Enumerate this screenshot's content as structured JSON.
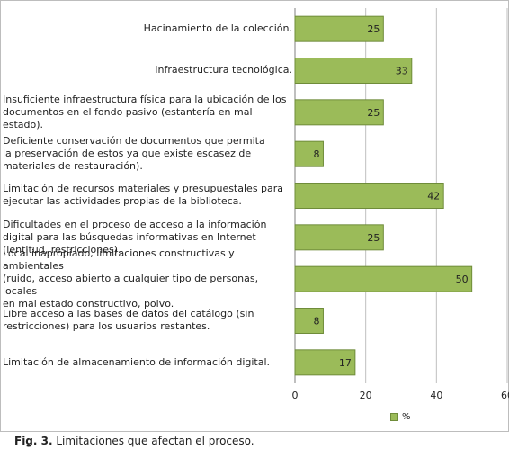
{
  "chart_data": {
    "type": "bar",
    "orientation": "horizontal",
    "categories": [
      "Hacinamiento de la colección.",
      "Infraestructura tecnológica.",
      "Insuficiente infraestructura física para la ubicación de los documentos en el fondo pasivo (estantería en mal estado).",
      "Deficiente conservación de documentos que permita la preservación de estos ya que existe escasez de materiales de restauración).",
      "Limitación de recursos materiales y presupuestales para ejecutar las actividades propias de la biblioteca.",
      "Dificultades en el proceso de acceso a la información digital para las búsquedas informativas en Internet (lentitud, restricciones).",
      "Local inapropiado, limitaciones constructivas y ambientales (ruido, acceso abierto a cualquier tipo de personas, locales en mal estado constructivo, polvo.",
      "Libre acceso a las bases de datos del catálogo (sin restricciones) para los usuarios restantes.",
      "Limitación de almacenamiento de información digital."
    ],
    "series": [
      {
        "name": "%",
        "values": [
          25,
          33,
          25,
          8,
          42,
          25,
          50,
          8,
          17
        ]
      }
    ],
    "xlim": [
      0,
      60
    ],
    "xticks": [
      "0",
      "20",
      "40",
      "60"
    ],
    "grid": true,
    "legend_position": "bottom-right",
    "bar_color": "#9bbb59",
    "bar_border_color": "#6f8c3a"
  },
  "category_lines": [
    [
      "Hacinamiento de la colección."
    ],
    [
      "Infraestructura tecnológica."
    ],
    [
      "Insuficiente infraestructura física para la ubicación de los",
      "documentos en el fondo pasivo (estantería en mal",
      "estado)."
    ],
    [
      "Deficiente conservación de documentos que permita",
      "la preservación de estos ya que existe escasez de",
      "materiales de restauración)."
    ],
    [
      "Limitación de recursos materiales y presupuestales para",
      "ejecutar las actividades propias de la biblioteca."
    ],
    [
      "Dificultades en el proceso de acceso a la información",
      "digital para las búsquedas informativas en Internet",
      "(lentitud, restricciones)."
    ],
    [
      "Local inapropiado, limitaciones constructivas y ambientales",
      "(ruido, acceso abierto a cualquier tipo de personas, locales",
      "en mal estado constructivo, polvo."
    ],
    [
      "Libre acceso a las bases de datos del catálogo (sin",
      "restricciones) para los usuarios restantes."
    ],
    [
      "Limitación de almacenamiento de información digital."
    ]
  ],
  "label_align": [
    "right",
    "right",
    "left",
    "left",
    "left",
    "left",
    "left",
    "left",
    "left"
  ],
  "legend": {
    "label": "%"
  },
  "caption": {
    "prefix": "Fig. 3.",
    "text": "Limitaciones que afectan el proceso."
  }
}
